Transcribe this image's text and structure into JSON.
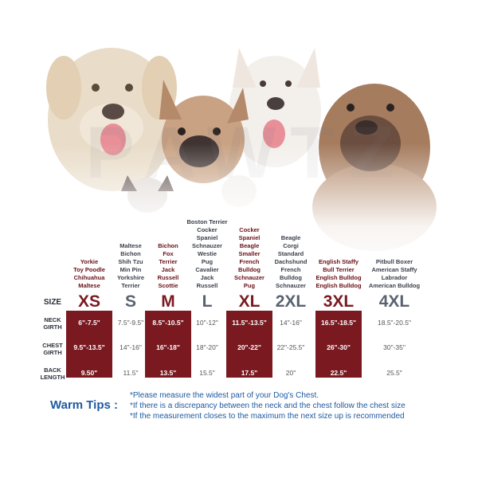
{
  "watermark": "PAWTZ",
  "row_labels": {
    "size": "SIZE",
    "neck": [
      "NECK",
      "GIRTH"
    ],
    "chest": [
      "CHEST",
      "GIRTH"
    ],
    "back": [
      "BACK",
      "LENGTH"
    ]
  },
  "sizes": [
    {
      "name": "XS",
      "highlight": true,
      "breeds": [
        "Yorkie",
        "Toy Poodle",
        "Chihuahua",
        "Maltese"
      ],
      "neck": "6\"-7.5\"",
      "chest": "9.5\"-13.5\"",
      "back": "9.50\""
    },
    {
      "name": "S",
      "highlight": false,
      "breeds": [
        "Maltese",
        "Bichon",
        "Shih Tzu",
        "Min Pin",
        "Yorkshire",
        "Terrier"
      ],
      "neck": "7.5\"-9.5\"",
      "chest": "14\"-16\"",
      "back": "11.5\""
    },
    {
      "name": "M",
      "highlight": true,
      "breeds": [
        "Bichon",
        "Fox",
        "Terrier",
        "Jack",
        "Russell",
        "Scottie"
      ],
      "neck": "8.5\"-10.5\"",
      "chest": "16\"-18\"",
      "back": "13.5\""
    },
    {
      "name": "L",
      "highlight": false,
      "breeds": [
        "Boston Terrier",
        "Cocker",
        "Spaniel",
        "Schnauzer",
        "Westie",
        "Pug",
        "Cavalier",
        "Jack",
        "Russell"
      ],
      "neck": "10\"-12\"",
      "chest": "18\"-20\"",
      "back": "15.5\""
    },
    {
      "name": "XL",
      "highlight": true,
      "breeds": [
        "Cocker",
        "Spaniel",
        "Beagle",
        "Smaller",
        "French",
        "Bulldog",
        "Schnauzer",
        "Pug"
      ],
      "neck": "11.5\"-13.5\"",
      "chest": "20\"-22\"",
      "back": "17.5\""
    },
    {
      "name": "2XL",
      "highlight": false,
      "breeds": [
        "Beagle",
        "Corgi",
        "Standard",
        "Dachshund",
        "French",
        "Bulldog",
        "Schnauzer"
      ],
      "neck": "14\"-16\"",
      "chest": "22\"-25.5\"",
      "back": "20\""
    },
    {
      "name": "3XL",
      "highlight": true,
      "breeds": [
        "English Staffy",
        "Bull Terrier",
        "English Bulldog",
        "English Bulldog"
      ],
      "neck": "16.5\"-18.5\"",
      "chest": "26\"-30\"",
      "back": "22.5\""
    },
    {
      "name": "4XL",
      "highlight": false,
      "breeds": [
        "Pitbull Boxer",
        "American Staffy",
        "Labrador",
        "American Bulldog"
      ],
      "neck": "18.5\"-20.5\"",
      "chest": "30\"-35\"",
      "back": "25.5\""
    }
  ],
  "tips": {
    "title": "Warm Tips :",
    "lines": [
      "*Please measure the widest part of your Dog's Chest.",
      "*If there is a discrepancy between the neck and the chest  follow the chest size",
      "*If the measurement closes to the maximum the next size up is recommended"
    ]
  },
  "colors": {
    "accent": "#7a1a20",
    "tips": "#1f5aa0"
  }
}
